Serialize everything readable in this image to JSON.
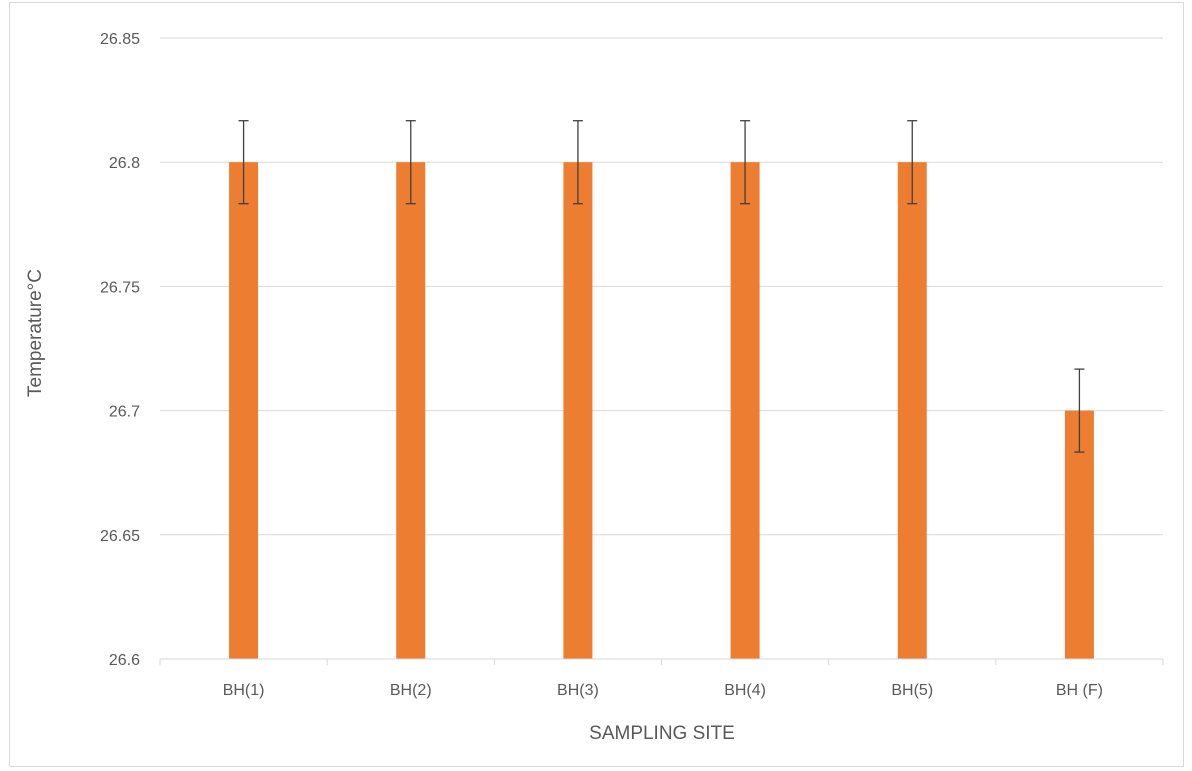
{
  "chart_data": {
    "type": "bar",
    "title": "",
    "xlabel": "SAMPLING SITE",
    "ylabel": "Temperature°C",
    "categories": [
      "BH(1)",
      "BH(2)",
      "BH(3)",
      "BH(4)",
      "BH(5)",
      "BH (F)"
    ],
    "series": [
      {
        "values": [
          26.8,
          26.8,
          26.8,
          26.8,
          26.8,
          26.7
        ],
        "error": [
          0.0167,
          0.0167,
          0.0167,
          0.0167,
          0.0167,
          0.0167
        ],
        "color": "#ed7d31"
      }
    ],
    "ylim": [
      26.6,
      26.85
    ],
    "yticks": [
      "26.6",
      "26.65",
      "26.7",
      "26.75",
      "26.8",
      "26.85"
    ],
    "grid": true,
    "legend": "none",
    "colors": {
      "bar": "#ed7d31",
      "gridline": "#d9d9d9",
      "error_bar": "#404040",
      "text": "#595959"
    }
  }
}
